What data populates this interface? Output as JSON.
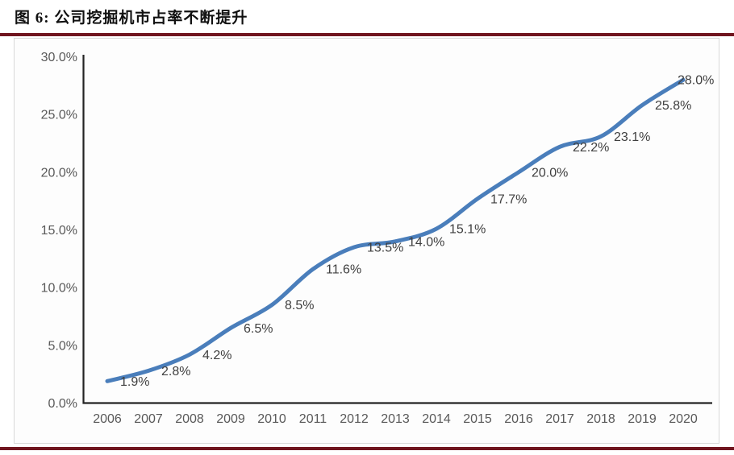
{
  "figure": {
    "title": "图 6: 公司挖掘机市占率不断提升"
  },
  "chart_data": {
    "type": "line",
    "title": "图 6: 公司挖掘机市占率不断提升",
    "categories": [
      "2006",
      "2007",
      "2008",
      "2009",
      "2010",
      "2011",
      "2012",
      "2013",
      "2014",
      "2015",
      "2016",
      "2017",
      "2018",
      "2019",
      "2020"
    ],
    "values": [
      1.9,
      2.8,
      4.2,
      6.5,
      8.5,
      11.6,
      13.5,
      14.0,
      15.1,
      17.7,
      20.0,
      22.2,
      23.1,
      25.8,
      28.0
    ],
    "data_labels": [
      "1.9%",
      "2.8%",
      "4.2%",
      "6.5%",
      "8.5%",
      "11.6%",
      "13.5%",
      "14.0%",
      "15.1%",
      "17.7%",
      "20.0%",
      "22.2%",
      "23.1%",
      "25.8%",
      "28.0%"
    ],
    "ylim": [
      0,
      30
    ],
    "y_tick_values": [
      0,
      5,
      10,
      15,
      20,
      25,
      30
    ],
    "y_tick_labels": [
      "0.0%",
      "5.0%",
      "10.0%",
      "15.0%",
      "20.0%",
      "25.0%",
      "30.0%"
    ],
    "xlabel": "",
    "ylabel": "",
    "grid": false,
    "legend": "none",
    "smooth": true
  },
  "style": {
    "line_color": "#4a7ebb",
    "data_label_color": "#3f3f3f",
    "tick_label_color": "#595959",
    "axis_color": "#232323",
    "rule_color": "#70151f",
    "panel_border_color": "#d9d9d9",
    "panel_bg_color": "#fdfdfd"
  }
}
